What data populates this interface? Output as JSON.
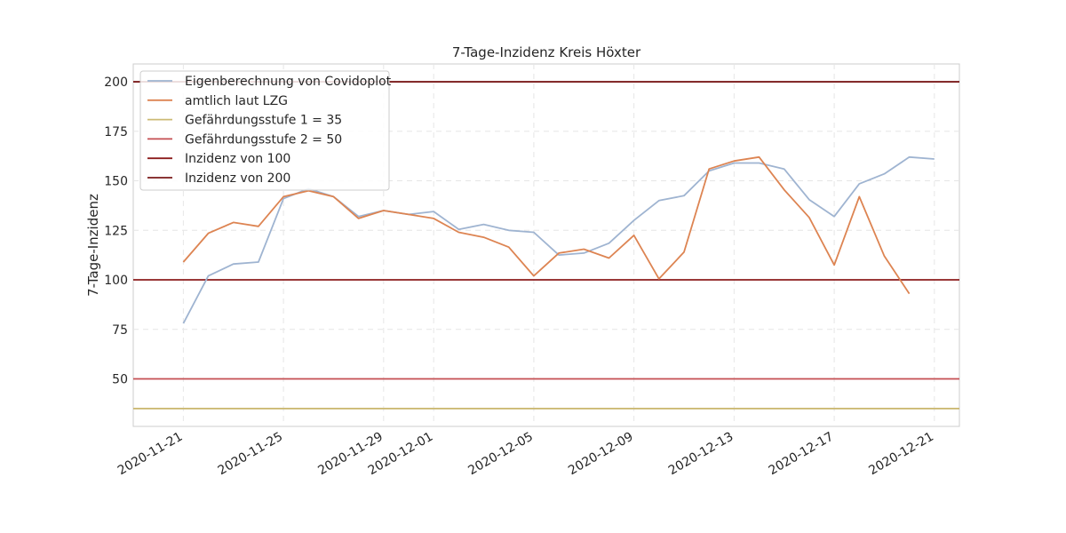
{
  "chart_data": {
    "type": "line",
    "title": "7-Tage-Inzidenz Kreis Höxter",
    "xlabel": "",
    "ylabel": "7-Tage-Inzidenz",
    "ylim": [
      26,
      209
    ],
    "xlim": [
      "2020-11-19",
      "2020-12-22"
    ],
    "grid": true,
    "legend_position": "upper-left",
    "x_ticks": [
      "2020-11-21",
      "2020-11-25",
      "2020-11-29",
      "2020-12-01",
      "2020-12-05",
      "2020-12-09",
      "2020-12-13",
      "2020-12-17",
      "2020-12-21"
    ],
    "y_ticks": [
      50,
      75,
      100,
      125,
      150,
      175,
      200
    ],
    "series": [
      {
        "name": "Eigenberechnung von Covidoplot",
        "color": "#9fb4d1",
        "x": [
          "2020-11-21",
          "2020-11-22",
          "2020-11-23",
          "2020-11-24",
          "2020-11-25",
          "2020-11-26",
          "2020-11-27",
          "2020-11-28",
          "2020-11-29",
          "2020-11-30",
          "2020-12-01",
          "2020-12-02",
          "2020-12-03",
          "2020-12-04",
          "2020-12-05",
          "2020-12-06",
          "2020-12-07",
          "2020-12-08",
          "2020-12-09",
          "2020-12-10",
          "2020-12-11",
          "2020-12-12",
          "2020-12-13",
          "2020-12-14",
          "2020-12-15",
          "2020-12-16",
          "2020-12-17",
          "2020-12-18",
          "2020-12-19",
          "2020-12-20",
          "2020-12-21"
        ],
        "values": [
          78,
          102,
          108,
          109,
          141,
          146,
          142,
          132,
          135,
          133,
          134.5,
          125.5,
          128,
          125,
          124,
          112.5,
          113.5,
          118.5,
          130,
          140,
          142.5,
          155,
          159,
          159,
          156,
          140.5,
          132,
          148.5,
          153.5,
          162,
          161
        ]
      },
      {
        "name": "amtlich laut LZG",
        "color": "#dd8452",
        "x": [
          "2020-11-21",
          "2020-11-22",
          "2020-11-23",
          "2020-11-24",
          "2020-11-25",
          "2020-11-26",
          "2020-11-27",
          "2020-11-28",
          "2020-11-29",
          "2020-11-30",
          "2020-12-01",
          "2020-12-02",
          "2020-12-03",
          "2020-12-04",
          "2020-12-05",
          "2020-12-06",
          "2020-12-07",
          "2020-12-08",
          "2020-12-09",
          "2020-12-10",
          "2020-12-11",
          "2020-12-12",
          "2020-12-13",
          "2020-12-14",
          "2020-12-15",
          "2020-12-16",
          "2020-12-17",
          "2020-12-18",
          "2020-12-19",
          "2020-12-20"
        ],
        "values": [
          109,
          123.5,
          129,
          127,
          142,
          145,
          142,
          131,
          135,
          133,
          131,
          124,
          121.5,
          116.5,
          102,
          113.5,
          115.5,
          111,
          122.5,
          100.5,
          114,
          156,
          160,
          162,
          145.5,
          131.5,
          107.5,
          142,
          112,
          93
        ]
      }
    ],
    "hlines": [
      {
        "name": "Gefährdungsstufe 1 = 35",
        "y": 35,
        "color": "#ccb974"
      },
      {
        "name": "Gefährdungsstufe 2 = 50",
        "y": 50,
        "color": "#c44e52"
      },
      {
        "name": "Inzidenz von 100",
        "y": 100,
        "color": "#8c1c1c"
      },
      {
        "name": "Inzidenz von 200",
        "y": 200,
        "color": "#7a1a1a"
      }
    ]
  }
}
